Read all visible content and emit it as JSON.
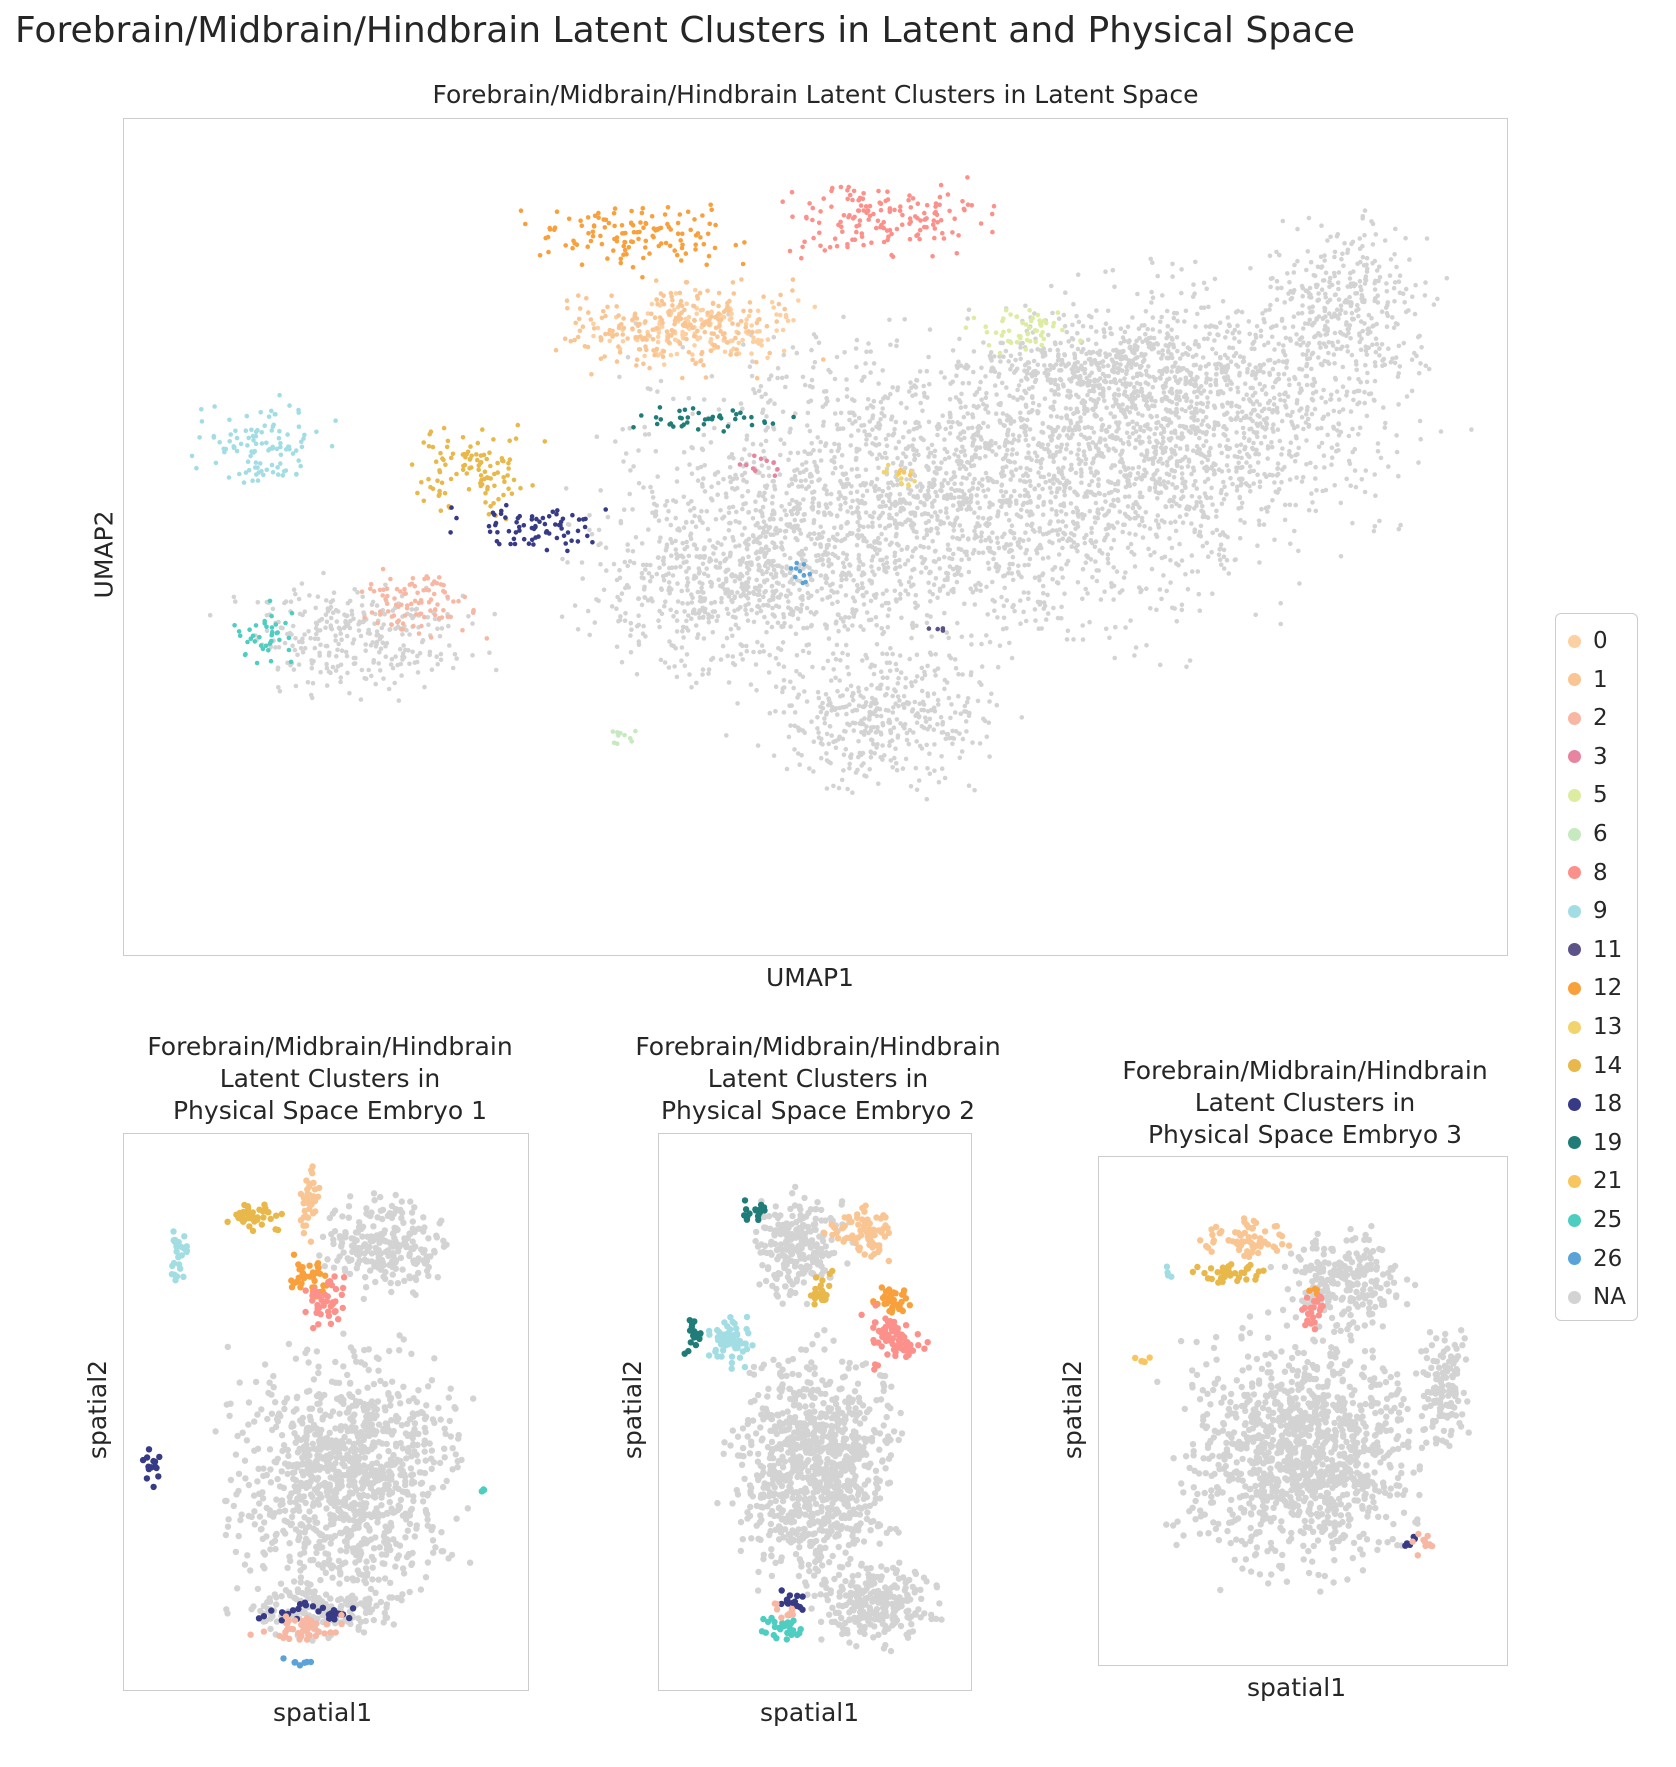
{
  "figure": {
    "suptitle": "Forebrain/Midbrain/Hindbrain Latent Clusters in Latent and Physical Space"
  },
  "chart_data": [
    {
      "type": "scatter",
      "title": "Forebrain/Midbrain/Hindbrain Latent Clusters in Latent Space",
      "xlabel": "UMAP1",
      "ylabel": "UMAP2",
      "grid": false,
      "legend": "right",
      "clusters": [
        {
          "name": "NA",
          "color": "#d3d3d3",
          "regions": [
            [
              0.6,
              0.45,
              0.3,
              0.25
            ],
            [
              0.78,
              0.35,
              0.2,
              0.22
            ],
            [
              0.45,
              0.55,
              0.16,
              0.16
            ],
            [
              0.55,
              0.72,
              0.12,
              0.12
            ],
            [
              0.17,
              0.62,
              0.12,
              0.09
            ],
            [
              0.88,
              0.22,
              0.08,
              0.14
            ],
            [
              0.7,
              0.3,
              0.12,
              0.08
            ]
          ]
        },
        {
          "name": "0",
          "color": "#fdd0a2",
          "regions": [
            [
              0.42,
              0.25,
              0.1,
              0.06
            ]
          ]
        },
        {
          "name": "1",
          "color": "#f9c592",
          "regions": [
            [
              0.4,
              0.25,
              0.12,
              0.07
            ]
          ]
        },
        {
          "name": "2",
          "color": "#f7b7a3",
          "regions": [
            [
              0.21,
              0.58,
              0.06,
              0.06
            ]
          ]
        },
        {
          "name": "3",
          "color": "#e7849f",
          "regions": [
            [
              0.46,
              0.41,
              0.02,
              0.02
            ]
          ]
        },
        {
          "name": "5",
          "color": "#dceca0",
          "regions": [
            [
              0.65,
              0.25,
              0.05,
              0.04
            ]
          ]
        },
        {
          "name": "6",
          "color": "#c7e9c0",
          "regions": [
            [
              0.36,
              0.74,
              0.02,
              0.02
            ]
          ]
        },
        {
          "name": "8",
          "color": "#fb918a",
          "regions": [
            [
              0.55,
              0.12,
              0.1,
              0.06
            ]
          ]
        },
        {
          "name": "9",
          "color": "#a2dde4",
          "regions": [
            [
              0.1,
              0.39,
              0.06,
              0.07
            ]
          ]
        },
        {
          "name": "11",
          "color": "#5c5489",
          "regions": [
            [
              0.59,
              0.61,
              0.01,
              0.01
            ]
          ]
        },
        {
          "name": "12",
          "color": "#f8a03c",
          "regions": [
            [
              0.37,
              0.14,
              0.1,
              0.05
            ]
          ]
        },
        {
          "name": "13",
          "color": "#f1d46e",
          "regions": [
            [
              0.56,
              0.43,
              0.02,
              0.02
            ]
          ]
        },
        {
          "name": "14",
          "color": "#e8b84b",
          "regions": [
            [
              0.25,
              0.42,
              0.06,
              0.07
            ]
          ]
        },
        {
          "name": "18",
          "color": "#373b85",
          "regions": [
            [
              0.3,
              0.49,
              0.07,
              0.04
            ]
          ]
        },
        {
          "name": "19",
          "color": "#1f7c78",
          "regions": [
            [
              0.42,
              0.36,
              0.08,
              0.02
            ]
          ]
        },
        {
          "name": "21",
          "color": "#f8c55f",
          "regions": [
            [
              0.56,
              0.42,
              0.01,
              0.01
            ]
          ]
        },
        {
          "name": "25",
          "color": "#4ecdc1",
          "regions": [
            [
              0.1,
              0.62,
              0.03,
              0.05
            ]
          ]
        },
        {
          "name": "26",
          "color": "#5aa3d9",
          "regions": [
            [
              0.49,
              0.54,
              0.02,
              0.02
            ]
          ]
        }
      ]
    },
    {
      "type": "scatter",
      "title": "Forebrain/Midbrain/Hindbrain\nLatent Clusters in\n Physical Space Embryo 1",
      "xlabel": "spatial1",
      "ylabel": "spatial2",
      "grid": false,
      "clusters": [
        {
          "name": "NA",
          "color": "#d3d3d3",
          "regions": [
            [
              0.55,
              0.62,
              0.36,
              0.3
            ],
            [
              0.65,
              0.2,
              0.2,
              0.12
            ],
            [
              0.48,
              0.86,
              0.25,
              0.06
            ]
          ]
        },
        {
          "name": "1",
          "color": "#f9c592",
          "regions": [
            [
              0.46,
              0.12,
              0.04,
              0.1
            ]
          ]
        },
        {
          "name": "12",
          "color": "#f8a03c",
          "regions": [
            [
              0.46,
              0.26,
              0.08,
              0.05
            ]
          ]
        },
        {
          "name": "8",
          "color": "#fb918a",
          "regions": [
            [
              0.49,
              0.3,
              0.08,
              0.06
            ]
          ]
        },
        {
          "name": "14",
          "color": "#e8b84b",
          "regions": [
            [
              0.32,
              0.15,
              0.1,
              0.04
            ]
          ]
        },
        {
          "name": "9",
          "color": "#a2dde4",
          "regions": [
            [
              0.13,
              0.22,
              0.04,
              0.07
            ]
          ]
        },
        {
          "name": "18",
          "color": "#373b85",
          "regions": [
            [
              0.45,
              0.86,
              0.16,
              0.02
            ],
            [
              0.07,
              0.6,
              0.03,
              0.05
            ]
          ]
        },
        {
          "name": "2",
          "color": "#f7b7a3",
          "regions": [
            [
              0.43,
              0.89,
              0.16,
              0.03
            ]
          ]
        },
        {
          "name": "26",
          "color": "#5aa3d9",
          "regions": [
            [
              0.45,
              0.95,
              0.08,
              0.01
            ]
          ]
        },
        {
          "name": "25",
          "color": "#4ecdc1",
          "regions": [
            [
              0.89,
              0.64,
              0.01,
              0.01
            ]
          ]
        }
      ]
    },
    {
      "type": "scatter",
      "title": "Forebrain/Midbrain/Hindbrain\nLatent Clusters in\n Physical Space Embryo 2",
      "xlabel": "spatial1",
      "ylabel": "spatial2",
      "grid": false,
      "clusters": [
        {
          "name": "NA",
          "color": "#d3d3d3",
          "regions": [
            [
              0.5,
              0.6,
              0.34,
              0.28
            ],
            [
              0.7,
              0.85,
              0.25,
              0.1
            ],
            [
              0.45,
              0.2,
              0.2,
              0.12
            ]
          ]
        },
        {
          "name": "1",
          "color": "#f9c592",
          "regions": [
            [
              0.65,
              0.18,
              0.14,
              0.06
            ]
          ]
        },
        {
          "name": "12",
          "color": "#f8a03c",
          "regions": [
            [
              0.75,
              0.3,
              0.1,
              0.04
            ]
          ]
        },
        {
          "name": "8",
          "color": "#fb918a",
          "regions": [
            [
              0.75,
              0.37,
              0.12,
              0.07
            ]
          ]
        },
        {
          "name": "9",
          "color": "#a2dde4",
          "regions": [
            [
              0.23,
              0.37,
              0.12,
              0.06
            ]
          ]
        },
        {
          "name": "19",
          "color": "#1f7c78",
          "regions": [
            [
              0.11,
              0.36,
              0.04,
              0.05
            ],
            [
              0.3,
              0.14,
              0.06,
              0.03
            ]
          ]
        },
        {
          "name": "14",
          "color": "#e8b84b",
          "regions": [
            [
              0.52,
              0.28,
              0.06,
              0.04
            ]
          ]
        },
        {
          "name": "18",
          "color": "#373b85",
          "regions": [
            [
              0.43,
              0.84,
              0.06,
              0.03
            ]
          ]
        },
        {
          "name": "25",
          "color": "#4ecdc1",
          "regions": [
            [
              0.4,
              0.89,
              0.1,
              0.03
            ]
          ]
        },
        {
          "name": "2",
          "color": "#f7b7a3",
          "regions": [
            [
              0.4,
              0.86,
              0.05,
              0.02
            ]
          ]
        }
      ]
    },
    {
      "type": "scatter",
      "title": "Forebrain/Midbrain/Hindbrain\nLatent Clusters in\n Physical Space Embryo 3",
      "xlabel": "spatial1",
      "ylabel": "spatial2",
      "grid": false,
      "clusters": [
        {
          "name": "NA",
          "color": "#d3d3d3",
          "regions": [
            [
              0.5,
              0.58,
              0.38,
              0.3
            ],
            [
              0.6,
              0.25,
              0.2,
              0.12
            ],
            [
              0.85,
              0.45,
              0.08,
              0.16
            ]
          ]
        },
        {
          "name": "1",
          "color": "#f9c592",
          "regions": [
            [
              0.35,
              0.16,
              0.15,
              0.05
            ]
          ]
        },
        {
          "name": "14",
          "color": "#e8b84b",
          "regions": [
            [
              0.33,
              0.23,
              0.14,
              0.03
            ]
          ]
        },
        {
          "name": "12",
          "color": "#f8a03c",
          "regions": [
            [
              0.53,
              0.26,
              0.03,
              0.02
            ]
          ]
        },
        {
          "name": "8",
          "color": "#fb918a",
          "regions": [
            [
              0.53,
              0.3,
              0.05,
              0.05
            ]
          ]
        },
        {
          "name": "9",
          "color": "#a2dde4",
          "regions": [
            [
              0.17,
              0.23,
              0.02,
              0.02
            ]
          ]
        },
        {
          "name": "18",
          "color": "#373b85",
          "regions": [
            [
              0.76,
              0.76,
              0.03,
              0.02
            ]
          ]
        },
        {
          "name": "2",
          "color": "#f7b7a3",
          "regions": [
            [
              0.79,
              0.76,
              0.04,
              0.03
            ]
          ]
        },
        {
          "name": "21",
          "color": "#f8c55f",
          "regions": [
            [
              0.1,
              0.4,
              0.03,
              0.02
            ]
          ]
        }
      ]
    }
  ],
  "legend": [
    {
      "label": "0",
      "color": "#fdd0a2"
    },
    {
      "label": "1",
      "color": "#f9c592"
    },
    {
      "label": "2",
      "color": "#f7b7a3"
    },
    {
      "label": "3",
      "color": "#e7849f"
    },
    {
      "label": "5",
      "color": "#dceca0"
    },
    {
      "label": "6",
      "color": "#c7e9c0"
    },
    {
      "label": "8",
      "color": "#fb918a"
    },
    {
      "label": "9",
      "color": "#a2dde4"
    },
    {
      "label": "11",
      "color": "#5c5489"
    },
    {
      "label": "12",
      "color": "#f8a03c"
    },
    {
      "label": "13",
      "color": "#f1d46e"
    },
    {
      "label": "14",
      "color": "#e8b84b"
    },
    {
      "label": "18",
      "color": "#373b85"
    },
    {
      "label": "19",
      "color": "#1f7c78"
    },
    {
      "label": "21",
      "color": "#f8c55f"
    },
    {
      "label": "25",
      "color": "#4ecdc1"
    },
    {
      "label": "26",
      "color": "#5aa3d9"
    },
    {
      "label": "NA",
      "color": "#d3d3d3"
    }
  ]
}
